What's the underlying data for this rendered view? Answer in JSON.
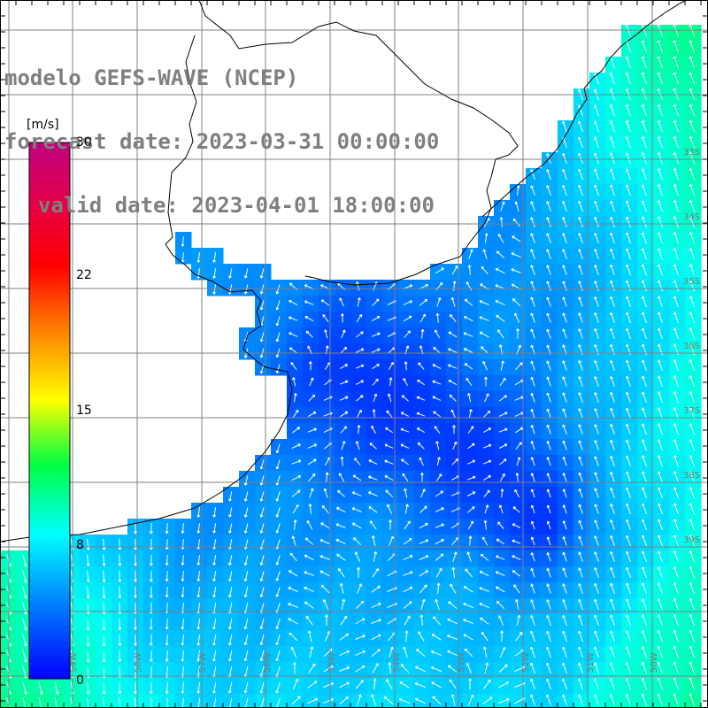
{
  "title": {
    "model": "modelo GEFS-WAVE (NCEP)",
    "forecast": "forecast date: 2023-03-31 00:00:00",
    "valid": "valid date: 2023-04-01 18:00:00"
  },
  "colorbar": {
    "unit": "[m/s]",
    "ticks": [
      "30",
      "22",
      "15",
      "8",
      "0"
    ],
    "colors": [
      "#0000ff",
      "#00a0ff",
      "#00ffff",
      "#00ff00",
      "#ffff00",
      "#ff8000",
      "#ff0000",
      "#c00070"
    ]
  },
  "map": {
    "lat_labels": [
      "33S",
      "34S",
      "35S",
      "36S",
      "37S",
      "38S",
      "39S"
    ],
    "lon_labels": [
      "59W",
      "58W",
      "57W",
      "56W",
      "55W",
      "54W",
      "53W",
      "52W",
      "51W",
      "50W"
    ],
    "wind_field": "10 m wind speed and direction",
    "land_color": "#ffffff",
    "grid_color": "#808080"
  }
}
